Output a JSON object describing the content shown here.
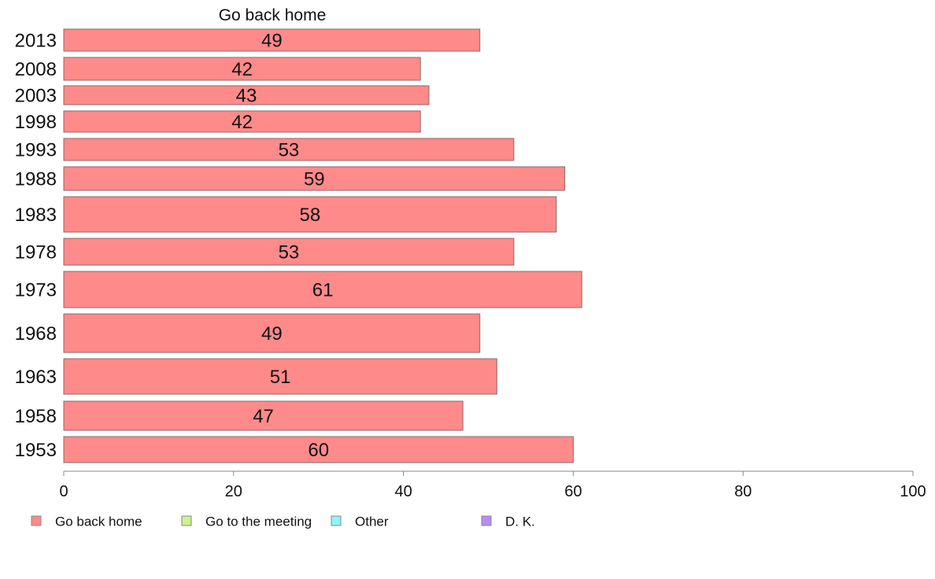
{
  "chart_data": {
    "type": "bar",
    "orientation": "horizontal",
    "title": "",
    "series_title": "Go back home",
    "categories": [
      "2013",
      "2008",
      "2003",
      "1998",
      "1993",
      "1988",
      "1983",
      "1978",
      "1973",
      "1968",
      "1963",
      "1958",
      "1953"
    ],
    "series": [
      {
        "name": "Go back home",
        "color": "#ff8a8a",
        "values": [
          49,
          42,
          43,
          42,
          53,
          59,
          58,
          53,
          61,
          49,
          51,
          47,
          60
        ],
        "labels": [
          "49",
          "42",
          "43",
          "42",
          "53",
          "59",
          "58",
          "53",
          "61",
          "49",
          "51",
          "47",
          "60"
        ]
      }
    ],
    "xlim": [
      0,
      100
    ],
    "xticks": [
      "0",
      "20",
      "40",
      "60",
      "80",
      "100"
    ],
    "grid": false,
    "legend": {
      "placement": "bottom",
      "items": [
        {
          "label": "Go back home",
          "color": "#ff8a8a"
        },
        {
          "label": "Go to the meeting",
          "color": "#c8f58c"
        },
        {
          "label": "Other",
          "color": "#8cf5f5"
        },
        {
          "label": "D. K.",
          "color": "#b88cf5"
        }
      ]
    }
  }
}
